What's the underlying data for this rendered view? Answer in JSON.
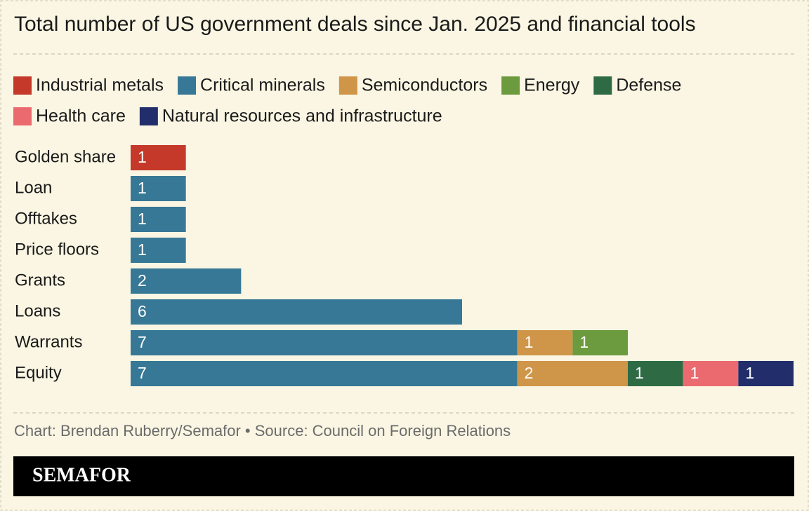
{
  "chart_data": {
    "type": "stacked-bar-horizontal",
    "title": "Total number of US government deals since Jan. 2025 and financial tools",
    "categories": [
      "Golden share",
      "Loan",
      "Offtakes",
      "Price floors",
      "Grants",
      "Loans",
      "Warrants",
      "Equity"
    ],
    "series": [
      {
        "name": "Industrial metals",
        "color": "#c4392a",
        "values": [
          1,
          null,
          null,
          null,
          null,
          null,
          null,
          null
        ]
      },
      {
        "name": "Critical minerals",
        "color": "#377896",
        "values": [
          null,
          1,
          1,
          1,
          2,
          6,
          7,
          7
        ]
      },
      {
        "name": "Semiconductors",
        "color": "#cf9548",
        "values": [
          null,
          null,
          null,
          null,
          null,
          null,
          1,
          2
        ]
      },
      {
        "name": "Energy",
        "color": "#6b9b3e",
        "values": [
          null,
          null,
          null,
          null,
          null,
          null,
          1,
          null
        ]
      },
      {
        "name": "Defense",
        "color": "#2e6b45",
        "values": [
          null,
          null,
          null,
          null,
          null,
          null,
          null,
          1
        ]
      },
      {
        "name": "Health care",
        "color": "#ea6a70",
        "values": [
          null,
          null,
          null,
          null,
          null,
          null,
          null,
          1
        ]
      },
      {
        "name": "Natural resources and infrastructure",
        "color": "#222d6b",
        "values": [
          null,
          null,
          null,
          null,
          null,
          null,
          null,
          1
        ]
      }
    ],
    "source": "Chart: Brendan Ruberry/Semafor • Source: Council on Foreign Relations",
    "logo": "SEMAFOR"
  }
}
